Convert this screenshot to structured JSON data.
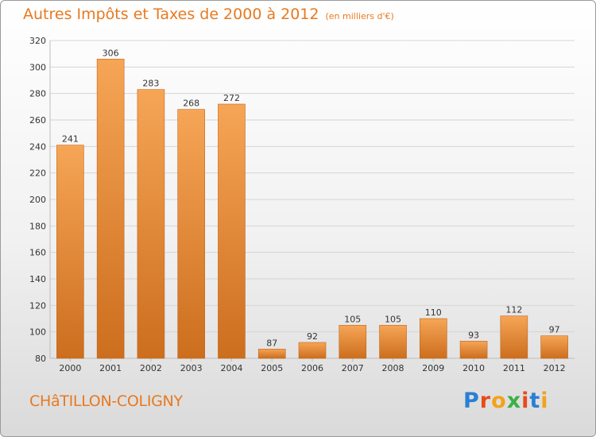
{
  "title": "Autres Impôts et Taxes de 2000 à 2012",
  "unit": "(en milliers d'€)",
  "commune": "CHâTILLON-COLIGNY",
  "logo": {
    "letters": [
      "P",
      "r",
      "o",
      "x",
      "i",
      "t",
      "i"
    ],
    "colors": [
      "#2a7fd4",
      "#e84a1c",
      "#f2a21c",
      "#3cb043",
      "#e84a1c",
      "#2a7fd4",
      "#f2a21c"
    ]
  },
  "colors": {
    "accent": "#e8791f",
    "bar_top": "#f6a556",
    "bar_bottom": "#cc6e1e"
  },
  "chart_data": {
    "type": "bar",
    "categories": [
      "2000",
      "2001",
      "2002",
      "2003",
      "2004",
      "2005",
      "2006",
      "2007",
      "2008",
      "2009",
      "2010",
      "2011",
      "2012"
    ],
    "values": [
      241,
      306,
      283,
      268,
      272,
      87,
      92,
      105,
      105,
      110,
      93,
      112,
      97
    ],
    "ylim": [
      80,
      320
    ],
    "yticks": [
      80,
      100,
      120,
      140,
      160,
      180,
      200,
      220,
      240,
      260,
      280,
      300,
      320
    ],
    "grid": true
  }
}
